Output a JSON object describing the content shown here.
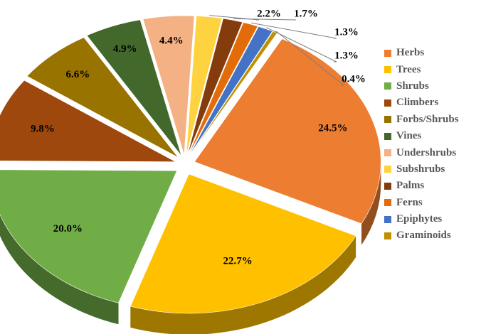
{
  "chart_data": {
    "type": "pie",
    "categories": [
      "Herbs",
      "Trees",
      "Shrubs",
      "Climbers",
      "Forbs/Shrubs",
      "Vines",
      "Undershrubs",
      "Subshrubs",
      "Palms",
      "Ferns",
      "Epiphytes",
      "Graminoids"
    ],
    "values": [
      24.5,
      22.7,
      20.0,
      9.8,
      6.6,
      4.9,
      4.4,
      2.2,
      1.7,
      1.3,
      1.3,
      0.4
    ],
    "data_labels": [
      "24.5%",
      "22.7%",
      "20.0%",
      "9.8%",
      "6.6%",
      "4.9%",
      "4.4%",
      "2.2%",
      "1.7%",
      "1.3%",
      "1.3%",
      "0.4%"
    ],
    "colors": [
      "#ED7D31",
      "#FFC000",
      "#70AD47",
      "#9E480E",
      "#997300",
      "#43682B",
      "#F4B183",
      "#FFD23F",
      "#843C0C",
      "#E36C09",
      "#4472C4",
      "#BF9000"
    ],
    "style": "3d-exploded-pie",
    "legend_position": "right",
    "title": ""
  }
}
